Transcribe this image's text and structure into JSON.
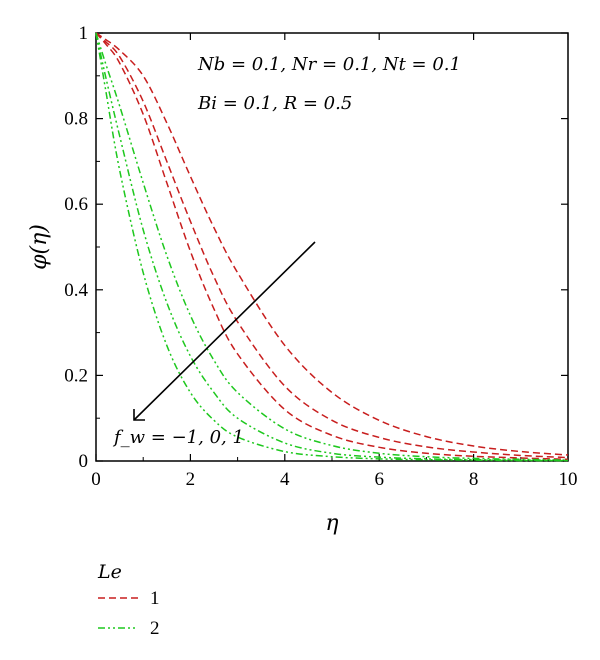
{
  "chart_data": {
    "type": "line",
    "title": "",
    "xlabel": "η",
    "ylabel": "φ(η)",
    "xlim": [
      0,
      10
    ],
    "ylim": [
      0,
      1
    ],
    "xticks": [
      "0",
      "2",
      "4",
      "6",
      "8",
      "10"
    ],
    "yticks": [
      "0",
      "0.2",
      "0.4",
      "0.6",
      "0.8",
      "1"
    ],
    "grid": false,
    "legend": {
      "title": "Le",
      "position": "below-left",
      "entries": [
        {
          "label": "1",
          "color": "#c81e1e",
          "dash": "dashed"
        },
        {
          "label": "2",
          "color": "#1ec81e",
          "dash": "dash-dot-dot"
        }
      ]
    },
    "annotations": {
      "params_line1": "Nb = 0.1, Nr = 0.1, Nt = 0.1",
      "params_line2": "Bi = 0.1, R = 0.5",
      "arrow_label": "f_w = −1, 0, 1"
    },
    "series": [
      {
        "group": "Le=1",
        "fw": "1",
        "color": "#c81e1e",
        "x": [
          0,
          0.2,
          0.5,
          1,
          1.5,
          2,
          2.5,
          3,
          4,
          5,
          6,
          7,
          8,
          9,
          10
        ],
        "y": [
          1,
          0.975,
          0.93,
          0.81,
          0.65,
          0.49,
          0.355,
          0.25,
          0.12,
          0.06,
          0.032,
          0.018,
          0.011,
          0.007,
          0.004
        ]
      },
      {
        "group": "Le=1",
        "fw": "0",
        "color": "#c81e1e",
        "x": [
          0,
          0.2,
          0.5,
          1,
          1.5,
          2,
          2.5,
          3,
          4,
          5,
          6,
          7,
          8,
          9,
          10
        ],
        "y": [
          1,
          0.98,
          0.945,
          0.84,
          0.7,
          0.56,
          0.43,
          0.325,
          0.175,
          0.095,
          0.055,
          0.033,
          0.021,
          0.013,
          0.008
        ]
      },
      {
        "group": "Le=1",
        "fw": "-1",
        "color": "#c81e1e",
        "x": [
          0,
          0.2,
          0.5,
          1,
          1.5,
          2,
          2.5,
          3,
          4,
          5,
          6,
          7,
          8,
          9,
          10
        ],
        "y": [
          1,
          0.985,
          0.96,
          0.9,
          0.79,
          0.665,
          0.545,
          0.44,
          0.27,
          0.16,
          0.095,
          0.057,
          0.035,
          0.022,
          0.014
        ]
      },
      {
        "group": "Le=2",
        "fw": "1",
        "color": "#1ec81e",
        "x": [
          0,
          0.2,
          0.5,
          1,
          1.5,
          2,
          2.5,
          3,
          4,
          5,
          6,
          7,
          8,
          9,
          10
        ],
        "y": [
          1,
          0.87,
          0.68,
          0.44,
          0.27,
          0.16,
          0.095,
          0.056,
          0.022,
          0.01,
          0.005,
          0.003,
          0.002,
          0.001,
          0.001
        ]
      },
      {
        "group": "Le=2",
        "fw": "0",
        "color": "#1ec81e",
        "x": [
          0,
          0.2,
          0.5,
          1,
          1.5,
          2,
          2.5,
          3,
          4,
          5,
          6,
          7,
          8,
          9,
          10
        ],
        "y": [
          1,
          0.9,
          0.76,
          0.54,
          0.37,
          0.245,
          0.16,
          0.1,
          0.042,
          0.018,
          0.009,
          0.005,
          0.003,
          0.002,
          0.001
        ]
      },
      {
        "group": "Le=2",
        "fw": "-1",
        "color": "#1ec81e",
        "x": [
          0,
          0.2,
          0.5,
          1,
          1.5,
          2,
          2.5,
          3,
          4,
          5,
          6,
          7,
          8,
          9,
          10
        ],
        "y": [
          1,
          0.93,
          0.83,
          0.65,
          0.48,
          0.34,
          0.235,
          0.16,
          0.075,
          0.036,
          0.018,
          0.01,
          0.006,
          0.004,
          0.002
        ]
      }
    ]
  }
}
